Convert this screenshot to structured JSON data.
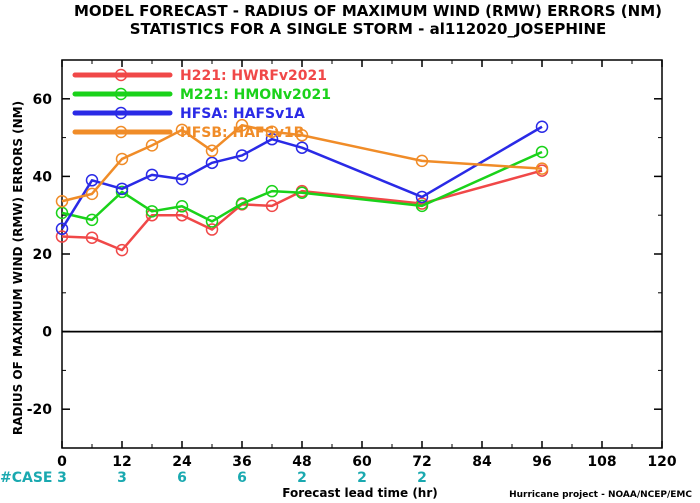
{
  "chart_data": {
    "type": "line",
    "title": "MODEL FORECAST - RADIUS OF MAXIMUM WIND (RMW) ERRORS (NM)",
    "subtitle": "STATISTICS FOR A SINGLE STORM - al112020_JOSEPHINE",
    "xlabel": "Forecast lead time (hr)",
    "ylabel": "RADIUS OF MAXIMUM WIND (RMW) ERRORS (NM)",
    "xlim": [
      0,
      120
    ],
    "ylim": [
      -30,
      70
    ],
    "xticks": [
      0,
      12,
      24,
      36,
      48,
      60,
      72,
      84,
      96,
      108,
      120
    ],
    "yticks": [
      -20,
      0,
      20,
      40,
      60
    ],
    "ytick_labels": [
      "-20",
      "0",
      "20",
      "40",
      "60"
    ],
    "grid": false,
    "legend_position": "top-left",
    "case_label": "#CASE",
    "case_counts": [
      {
        "x": 0,
        "label": "3"
      },
      {
        "x": 12,
        "label": "3"
      },
      {
        "x": 24,
        "label": "6"
      },
      {
        "x": 36,
        "label": "6"
      },
      {
        "x": 48,
        "label": "2"
      },
      {
        "x": 60,
        "label": "2"
      },
      {
        "x": 72,
        "label": "2"
      }
    ],
    "credit": "Hurricane project - NOAA/NCEP/EMC",
    "series": [
      {
        "name": "H221: HWRFv2021",
        "color": "#f04848",
        "x": [
          0,
          6,
          12,
          18,
          24,
          30,
          36,
          42,
          48,
          72,
          96
        ],
        "y": [
          24.5,
          24.2,
          21.0,
          30.0,
          30.0,
          26.3,
          32.8,
          32.4,
          36.2,
          33.0,
          41.5
        ]
      },
      {
        "name": "M221: HMONv2021",
        "color": "#1ad21a",
        "x": [
          0,
          6,
          12,
          18,
          24,
          30,
          36,
          42,
          48,
          72,
          96
        ],
        "y": [
          30.6,
          28.8,
          36.0,
          31.0,
          32.3,
          28.4,
          33.0,
          36.2,
          35.8,
          32.4,
          46.3
        ]
      },
      {
        "name": "HFSA: HAFSv1A",
        "color": "#2a2ae6",
        "x": [
          0,
          6,
          12,
          18,
          24,
          30,
          36,
          42,
          48,
          72,
          96
        ],
        "y": [
          26.5,
          39.0,
          36.8,
          40.4,
          39.3,
          43.5,
          45.4,
          49.6,
          47.4,
          34.7,
          52.8
        ]
      },
      {
        "name": "HFSB: HAFSv1B",
        "color": "#f08c28",
        "x": [
          0,
          6,
          12,
          18,
          24,
          30,
          36,
          42,
          48,
          72,
          96
        ],
        "y": [
          33.6,
          35.5,
          44.5,
          48.0,
          52.0,
          46.6,
          53.2,
          51.5,
          50.6,
          44.0,
          42.0
        ]
      }
    ]
  }
}
